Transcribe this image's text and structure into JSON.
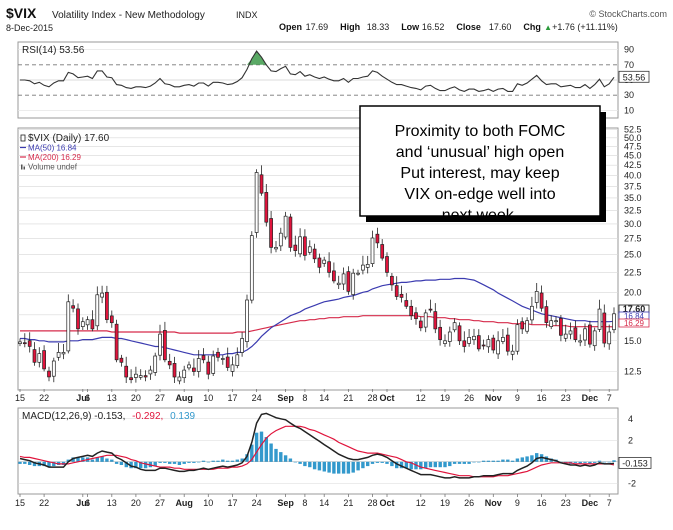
{
  "header": {
    "symbol": "$VIX",
    "name": "Volatility Index - New Methodology",
    "exchange": "INDX",
    "date": "8-Dec-2015",
    "watermark": "© StockCharts.com",
    "ohlc": [
      {
        "label": "Open",
        "value": "17.69"
      },
      {
        "label": "High",
        "value": "18.33"
      },
      {
        "label": "Low",
        "value": "16.52"
      },
      {
        "label": "Close",
        "value": "17.60"
      },
      {
        "label": "Chg",
        "value": "+1.76 (+11.11%)"
      }
    ],
    "chg_arrow": "▲"
  },
  "rsi_panel": {
    "label": "RSI(14) 53.56",
    "value_badge": "53.56",
    "ticks": [
      "90",
      "70",
      "50",
      "30",
      "10"
    ]
  },
  "price_panel": {
    "legend": [
      {
        "text": "$VIX (Daily) 17.60",
        "color": "#222222",
        "icon": "candle-icon"
      },
      {
        "text": "MA(50) 16.84",
        "color": "#3b3bb0",
        "icon": "dash-icon"
      },
      {
        "text": "MA(200) 16.29",
        "color": "#d62b4b",
        "icon": "dash-icon"
      },
      {
        "text": "Volume undef",
        "color": "#555555",
        "icon": "bars-icon"
      }
    ],
    "badges": [
      {
        "text": "17.60",
        "color": "#222222",
        "fill": "#ffffff"
      },
      {
        "text": "16.84",
        "color": "#3b3bb0",
        "fill": "#ffffff"
      },
      {
        "text": "16.29",
        "color": "#d62b4b",
        "fill": "#ffffff"
      }
    ],
    "annotation": "Proximity to both FOMC and ‘unusual’ high open Put interest, may keep VIX on-edge well into next week."
  },
  "macd_panel": {
    "label_prefix": "MACD(12,26,9) -0.153,",
    "label_signal": "-0.292,",
    "label_hist": "0.139",
    "value_badge": "-0.153",
    "ticks": [
      "4",
      "2",
      "0",
      "-2"
    ]
  },
  "x_axis": {
    "labels": [
      {
        "text": "15",
        "bold": false
      },
      {
        "text": "22",
        "bold": false
      },
      {
        "text": "Jul",
        "bold": true
      },
      {
        "text": "6",
        "bold": false
      },
      {
        "text": "13",
        "bold": false
      },
      {
        "text": "20",
        "bold": false
      },
      {
        "text": "27",
        "bold": false
      },
      {
        "text": "Aug",
        "bold": true
      },
      {
        "text": "10",
        "bold": false
      },
      {
        "text": "17",
        "bold": false
      },
      {
        "text": "24",
        "bold": false
      },
      {
        "text": "Sep",
        "bold": true
      },
      {
        "text": "8",
        "bold": false
      },
      {
        "text": "14",
        "bold": false
      },
      {
        "text": "21",
        "bold": false
      },
      {
        "text": "28",
        "bold": false
      },
      {
        "text": "Oct",
        "bold": true
      },
      {
        "text": "12",
        "bold": false
      },
      {
        "text": "19",
        "bold": false
      },
      {
        "text": "26",
        "bold": false
      },
      {
        "text": "Nov",
        "bold": true
      },
      {
        "text": "9",
        "bold": false
      },
      {
        "text": "16",
        "bold": false
      },
      {
        "text": "23",
        "bold": false
      },
      {
        "text": "Dec",
        "bold": true
      },
      {
        "text": "7",
        "bold": false
      }
    ]
  },
  "colors": {
    "up_candle": "#ffffff",
    "down_candle": "#e0143c",
    "candle_outline": "#222222",
    "ma50": "#3b3bb0",
    "ma200": "#d62b4b",
    "macd_line": "#222222",
    "signal_line": "#e0143c",
    "histogram": "#3399cc",
    "rsi_line": "#333333",
    "rsi_overbought_fill": "#3d9a4a",
    "grid": "#d8d8d8"
  },
  "chart_data": {
    "type": "candlestick",
    "title": "$VIX Volatility Index - New Methodology INDX",
    "price_y_ticks": [
      12.5,
      15.0,
      17.5,
      20.0,
      22.5,
      25.0,
      27.5,
      30.0,
      32.5,
      35.0,
      37.5,
      40.0,
      42.5,
      45.0,
      47.5,
      50.0,
      52.5
    ],
    "price_scale": "log",
    "price_range": [
      11.2,
      53
    ],
    "rsi_range": [
      0,
      100
    ],
    "macd_range": [
      -3,
      5
    ],
    "dates": [
      "2015-06-15",
      "2015-06-16",
      "2015-06-17",
      "2015-06-18",
      "2015-06-19",
      "2015-06-22",
      "2015-06-23",
      "2015-06-24",
      "2015-06-25",
      "2015-06-26",
      "2015-06-29",
      "2015-06-30",
      "2015-07-01",
      "2015-07-02",
      "2015-07-06",
      "2015-07-07",
      "2015-07-08",
      "2015-07-09",
      "2015-07-10",
      "2015-07-13",
      "2015-07-14",
      "2015-07-15",
      "2015-07-16",
      "2015-07-17",
      "2015-07-20",
      "2015-07-21",
      "2015-07-22",
      "2015-07-23",
      "2015-07-24",
      "2015-07-27",
      "2015-07-28",
      "2015-07-29",
      "2015-07-30",
      "2015-07-31",
      "2015-08-03",
      "2015-08-04",
      "2015-08-05",
      "2015-08-06",
      "2015-08-07",
      "2015-08-10",
      "2015-08-11",
      "2015-08-12",
      "2015-08-13",
      "2015-08-14",
      "2015-08-17",
      "2015-08-18",
      "2015-08-19",
      "2015-08-20",
      "2015-08-21",
      "2015-08-24",
      "2015-08-25",
      "2015-08-26",
      "2015-08-27",
      "2015-08-28",
      "2015-08-31",
      "2015-09-01",
      "2015-09-02",
      "2015-09-03",
      "2015-09-04",
      "2015-09-08",
      "2015-09-09",
      "2015-09-10",
      "2015-09-11",
      "2015-09-14",
      "2015-09-15",
      "2015-09-16",
      "2015-09-17",
      "2015-09-18",
      "2015-09-21",
      "2015-09-22",
      "2015-09-23",
      "2015-09-24",
      "2015-09-25",
      "2015-09-28",
      "2015-09-29",
      "2015-09-30",
      "2015-10-01",
      "2015-10-02",
      "2015-10-05",
      "2015-10-06",
      "2015-10-07",
      "2015-10-08",
      "2015-10-09",
      "2015-10-12",
      "2015-10-13",
      "2015-10-14",
      "2015-10-15",
      "2015-10-16",
      "2015-10-19",
      "2015-10-20",
      "2015-10-21",
      "2015-10-22",
      "2015-10-23",
      "2015-10-26",
      "2015-10-27",
      "2015-10-28",
      "2015-10-29",
      "2015-10-30",
      "2015-11-02",
      "2015-11-03",
      "2015-11-04",
      "2015-11-05",
      "2015-11-06",
      "2015-11-09",
      "2015-11-10",
      "2015-11-11",
      "2015-11-12",
      "2015-11-13",
      "2015-11-16",
      "2015-11-17",
      "2015-11-18",
      "2015-11-19",
      "2015-11-20",
      "2015-11-23",
      "2015-11-24",
      "2015-11-25",
      "2015-11-27",
      "2015-11-30",
      "2015-12-01",
      "2015-12-02",
      "2015-12-03",
      "2015-12-04",
      "2015-12-07",
      "2015-12-08"
    ],
    "close": [
      14.9,
      14.8,
      14.5,
      13.2,
      13.9,
      12.7,
      12.1,
      13.3,
      14.0,
      14.0,
      18.9,
      18.2,
      16.1,
      16.8,
      17.0,
      16.1,
      19.7,
      19.9,
      17.0,
      16.7,
      13.4,
      13.2,
      12.1,
      11.9,
      12.3,
      12.2,
      12.1,
      12.6,
      13.7,
      15.6,
      13.4,
      13.0,
      12.1,
      12.1,
      12.6,
      13.0,
      12.5,
      13.5,
      13.4,
      12.3,
      13.7,
      13.6,
      13.5,
      12.8,
      13.0,
      13.8,
      15.2,
      19.1,
      28.0,
      40.7,
      36.0,
      30.3,
      26.1,
      26.1,
      28.4,
      31.4,
      26.1,
      25.6,
      27.8,
      24.9,
      26.2,
      24.4,
      23.2,
      24.2,
      22.5,
      21.4,
      21.1,
      22.3,
      20.1,
      22.4,
      22.4,
      23.5,
      23.6,
      27.6,
      26.8,
      24.5,
      22.5,
      20.9,
      19.5,
      19.4,
      18.4,
      17.4,
      17.1,
      16.2,
      17.7,
      18.0,
      16.1,
      15.1,
      15.0,
      15.8,
      16.7,
      15.0,
      14.5,
      15.3,
      15.4,
      14.3,
      14.6,
      15.1,
      14.2,
      15.0,
      15.3,
      14.1,
      14.1,
      16.5,
      16.1,
      16.9,
      18.4,
      20.1,
      18.2,
      16.7,
      16.9,
      16.9,
      15.5,
      15.6,
      15.9,
      15.1,
      15.0,
      16.1,
      14.7,
      15.9,
      18.1,
      14.8,
      15.8,
      17.6
    ],
    "ma50": [
      15.2,
      15.2,
      15.1,
      15.1,
      15.0,
      15.0,
      14.9,
      14.9,
      14.9,
      14.9,
      15.0,
      15.0,
      15.0,
      15.1,
      15.1,
      15.1,
      15.2,
      15.3,
      15.3,
      15.3,
      15.2,
      15.2,
      15.1,
      15.0,
      14.9,
      14.8,
      14.7,
      14.6,
      14.5,
      14.5,
      14.4,
      14.3,
      14.2,
      14.1,
      14.0,
      13.9,
      13.8,
      13.8,
      13.8,
      13.8,
      13.8,
      13.8,
      13.8,
      13.9,
      13.9,
      14.0,
      14.0,
      14.2,
      14.5,
      14.9,
      15.4,
      15.8,
      16.2,
      16.5,
      16.8,
      17.1,
      17.4,
      17.6,
      17.8,
      18.1,
      18.3,
      18.5,
      18.7,
      18.9,
      19.0,
      19.1,
      19.2,
      19.4,
      19.5,
      19.6,
      19.8,
      20.0,
      20.1,
      20.4,
      20.6,
      20.8,
      20.9,
      21.0,
      21.1,
      21.2,
      21.2,
      21.3,
      21.4,
      21.4,
      21.5,
      21.5,
      21.5,
      21.6,
      21.6,
      21.6,
      21.7,
      21.7,
      21.7,
      21.6,
      21.5,
      21.2,
      20.9,
      20.6,
      20.3,
      19.9,
      19.6,
      19.3,
      19.0,
      18.7,
      18.4,
      18.2,
      18.0,
      17.8,
      17.6,
      17.5,
      17.4,
      17.3,
      17.2,
      17.1,
      17.0,
      16.9,
      16.9,
      16.9,
      16.8,
      16.8,
      16.8,
      16.8,
      16.8,
      16.84
    ],
    "ma200": [
      15.9,
      15.9,
      15.9,
      15.9,
      15.9,
      15.9,
      15.9,
      15.9,
      15.9,
      15.9,
      15.9,
      15.9,
      15.9,
      15.9,
      15.9,
      15.9,
      15.9,
      15.9,
      15.9,
      15.8,
      15.8,
      15.8,
      15.8,
      15.8,
      15.8,
      15.8,
      15.8,
      15.8,
      15.8,
      15.8,
      15.8,
      15.8,
      15.8,
      15.7,
      15.7,
      15.7,
      15.7,
      15.7,
      15.7,
      15.7,
      15.7,
      15.7,
      15.7,
      15.7,
      15.7,
      15.8,
      15.8,
      15.8,
      15.9,
      16.0,
      16.1,
      16.2,
      16.3,
      16.4,
      16.5,
      16.6,
      16.7,
      16.8,
      16.9,
      16.9,
      17.0,
      17.0,
      17.1,
      17.1,
      17.2,
      17.2,
      17.2,
      17.3,
      17.3,
      17.3,
      17.3,
      17.4,
      17.4,
      17.4,
      17.4,
      17.4,
      17.4,
      17.4,
      17.4,
      17.4,
      17.4,
      17.4,
      17.4,
      17.3,
      17.3,
      17.3,
      17.2,
      17.2,
      17.2,
      17.1,
      17.1,
      17.0,
      17.0,
      17.0,
      16.9,
      16.9,
      16.8,
      16.8,
      16.8,
      16.7,
      16.7,
      16.7,
      16.6,
      16.6,
      16.6,
      16.6,
      16.5,
      16.5,
      16.5,
      16.5,
      16.4,
      16.4,
      16.4,
      16.4,
      16.3,
      16.3,
      16.3,
      16.3,
      16.3,
      16.3,
      16.3,
      16.3,
      16.3,
      16.29
    ],
    "rsi": [
      50,
      50,
      49,
      45,
      47,
      43,
      41,
      46,
      49,
      49,
      60,
      58,
      53,
      54,
      55,
      52,
      62,
      62,
      54,
      53,
      44,
      43,
      40,
      39,
      41,
      41,
      40,
      42,
      46,
      52,
      45,
      44,
      41,
      41,
      43,
      44,
      42,
      46,
      46,
      42,
      47,
      47,
      46,
      44,
      45,
      48,
      53,
      64,
      78,
      88,
      80,
      70,
      62,
      61,
      65,
      68,
      58,
      57,
      61,
      55,
      57,
      54,
      52,
      54,
      51,
      49,
      49,
      52,
      47,
      52,
      52,
      54,
      55,
      62,
      60,
      55,
      51,
      47,
      44,
      44,
      42,
      40,
      39,
      37,
      42,
      43,
      39,
      36,
      36,
      39,
      41,
      37,
      35,
      38,
      38,
      35,
      36,
      38,
      35,
      38,
      39,
      35,
      35,
      45,
      43,
      46,
      51,
      56,
      49,
      44,
      45,
      45,
      41,
      42,
      43,
      40,
      40,
      44,
      39,
      44,
      51,
      41,
      45,
      53.56
    ],
    "macd": [
      0.3,
      0.2,
      0.1,
      -0.1,
      -0.2,
      -0.3,
      -0.5,
      -0.5,
      -0.5,
      -0.5,
      0.0,
      0.3,
      0.4,
      0.5,
      0.6,
      0.5,
      0.8,
      1.0,
      0.9,
      0.8,
      0.4,
      0.2,
      -0.1,
      -0.4,
      -0.5,
      -0.7,
      -0.8,
      -0.8,
      -0.8,
      -0.6,
      -0.6,
      -0.7,
      -0.8,
      -0.9,
      -0.9,
      -0.8,
      -0.8,
      -0.7,
      -0.6,
      -0.7,
      -0.6,
      -0.5,
      -0.4,
      -0.5,
      -0.4,
      -0.3,
      -0.1,
      0.5,
      1.8,
      3.6,
      4.4,
      4.5,
      4.3,
      4.1,
      4.0,
      3.9,
      3.6,
      3.3,
      3.1,
      2.8,
      2.5,
      2.2,
      1.9,
      1.6,
      1.3,
      1.0,
      0.7,
      0.5,
      0.3,
      0.2,
      0.2,
      0.3,
      0.4,
      0.6,
      0.7,
      0.6,
      0.4,
      0.1,
      -0.2,
      -0.4,
      -0.6,
      -0.8,
      -1.0,
      -1.2,
      -1.2,
      -1.2,
      -1.3,
      -1.4,
      -1.5,
      -1.5,
      -1.4,
      -1.5,
      -1.5,
      -1.5,
      -1.4,
      -1.4,
      -1.3,
      -1.3,
      -1.3,
      -1.2,
      -1.1,
      -1.1,
      -1.1,
      -0.8,
      -0.6,
      -0.4,
      -0.1,
      0.3,
      0.4,
      0.3,
      0.2,
      0.1,
      -0.1,
      -0.2,
      -0.3,
      -0.3,
      -0.4,
      -0.3,
      -0.4,
      -0.3,
      -0.1,
      -0.2,
      -0.2,
      -0.153
    ],
    "signal": [
      0.5,
      0.4,
      0.4,
      0.3,
      0.2,
      0.1,
      0.0,
      -0.1,
      -0.2,
      -0.2,
      -0.2,
      -0.1,
      0.0,
      0.1,
      0.2,
      0.3,
      0.4,
      0.5,
      0.6,
      0.6,
      0.6,
      0.5,
      0.4,
      0.2,
      0.1,
      -0.1,
      -0.2,
      -0.3,
      -0.4,
      -0.5,
      -0.5,
      -0.5,
      -0.6,
      -0.6,
      -0.7,
      -0.7,
      -0.7,
      -0.7,
      -0.7,
      -0.7,
      -0.7,
      -0.6,
      -0.6,
      -0.6,
      -0.5,
      -0.5,
      -0.4,
      -0.2,
      0.2,
      0.9,
      1.6,
      2.2,
      2.6,
      2.9,
      3.1,
      3.3,
      3.3,
      3.3,
      3.3,
      3.2,
      3.0,
      2.9,
      2.7,
      2.5,
      2.3,
      2.1,
      1.8,
      1.6,
      1.4,
      1.2,
      1.0,
      0.9,
      0.8,
      0.8,
      0.8,
      0.7,
      0.6,
      0.5,
      0.4,
      0.2,
      0.0,
      -0.1,
      -0.3,
      -0.5,
      -0.6,
      -0.7,
      -0.8,
      -0.9,
      -1.0,
      -1.1,
      -1.2,
      -1.3,
      -1.3,
      -1.3,
      -1.4,
      -1.4,
      -1.4,
      -1.4,
      -1.4,
      -1.3,
      -1.3,
      -1.3,
      -1.2,
      -1.1,
      -1.0,
      -0.9,
      -0.7,
      -0.5,
      -0.3,
      -0.2,
      -0.1,
      -0.1,
      -0.1,
      -0.1,
      -0.1,
      -0.2,
      -0.2,
      -0.2,
      -0.2,
      -0.2,
      -0.2,
      -0.2,
      -0.2,
      -0.292
    ]
  }
}
